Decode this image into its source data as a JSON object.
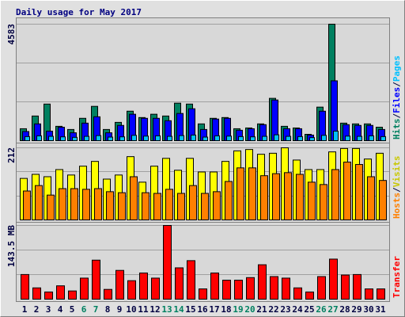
{
  "title": "Daily usage for May 2017",
  "chart_data": [
    {
      "type": "bar",
      "ylim": [
        0,
        4583
      ],
      "yticks": [
        4583
      ],
      "legend_separator": "/",
      "legend_reversed": false,
      "series": [
        {
          "name": "Hits",
          "color": "#008060",
          "values": [
            470,
            970,
            1440,
            565,
            440,
            880,
            1350,
            440,
            720,
            1160,
            910,
            1040,
            970,
            1475,
            1440,
            660,
            880,
            910,
            470,
            500,
            660,
            1665,
            565,
            500,
            250,
            1320,
            4583,
            690,
            660,
            660,
            530
          ]
        },
        {
          "name": "Files",
          "color": "#0000ff",
          "values": [
            360,
            660,
            375,
            530,
            310,
            690,
            940,
            310,
            600,
            1040,
            880,
            880,
            785,
            1070,
            1255,
            440,
            850,
            880,
            410,
            470,
            630,
            1600,
            470,
            470,
            220,
            1160,
            2355,
            630,
            600,
            600,
            440
          ]
        },
        {
          "name": "Pages",
          "color": "#00c0ff",
          "values": [
            160,
            190,
            170,
            150,
            130,
            170,
            200,
            140,
            150,
            210,
            180,
            190,
            170,
            200,
            220,
            140,
            190,
            180,
            160,
            150,
            170,
            230,
            170,
            160,
            120,
            210,
            375,
            180,
            170,
            190,
            160
          ]
        }
      ]
    },
    {
      "type": "bar",
      "ylim": [
        0,
        212
      ],
      "yticks": [
        212
      ],
      "legend_separator": "/",
      "legend_reversed": true,
      "series": [
        {
          "name": "Visits",
          "color": "#ffff00",
          "values": [
            122,
            134,
            127,
            148,
            132,
            158,
            172,
            120,
            132,
            186,
            111,
            158,
            181,
            146,
            181,
            141,
            141,
            172,
            203,
            207,
            193,
            196,
            212,
            176,
            148,
            148,
            200,
            210,
            210,
            179,
            196
          ]
        },
        {
          "name": "Hosts",
          "color": "#ff8000",
          "values": [
            85,
            101,
            73,
            92,
            92,
            90,
            92,
            83,
            80,
            127,
            80,
            78,
            90,
            78,
            101,
            78,
            83,
            113,
            153,
            153,
            130,
            136,
            139,
            134,
            111,
            104,
            148,
            170,
            163,
            127,
            116
          ]
        }
      ]
    },
    {
      "type": "bar",
      "ylim": [
        0,
        143.5
      ],
      "yticks": [
        {
          "value": 143.5,
          "label": "143.5 MB"
        }
      ],
      "legend_separator": "/",
      "legend_reversed": false,
      "categories": [
        "1",
        "2",
        "3",
        "4",
        "5",
        "6",
        "7",
        "8",
        "9",
        "10",
        "11",
        "12",
        "13",
        "14",
        "15",
        "16",
        "17",
        "18",
        "19",
        "20",
        "21",
        "22",
        "23",
        "24",
        "25",
        "26",
        "27",
        "28",
        "29",
        "30",
        "31"
      ],
      "category_colors": [
        "#000040",
        "#000040",
        "#000040",
        "#000040",
        "#000040",
        "#008060",
        "#008060",
        "#000040",
        "#000040",
        "#000040",
        "#000040",
        "#000040",
        "#008060",
        "#008060",
        "#000040",
        "#000040",
        "#000040",
        "#000040",
        "#008060",
        "#008060",
        "#000040",
        "#000040",
        "#000040",
        "#000040",
        "#000040",
        "#008060",
        "#008060",
        "#000040",
        "#000040",
        "#000040",
        "#000040"
      ],
      "series": [
        {
          "name": "Transfer",
          "color": "#ff0000",
          "values": [
            48,
            22,
            14,
            26,
            16,
            41,
            76,
            19,
            56,
            36,
            51,
            41,
            143.5,
            61,
            75,
            20,
            51,
            37,
            37,
            42,
            67,
            44,
            41,
            22,
            14,
            44,
            78,
            47,
            48,
            20,
            20
          ]
        }
      ]
    }
  ]
}
